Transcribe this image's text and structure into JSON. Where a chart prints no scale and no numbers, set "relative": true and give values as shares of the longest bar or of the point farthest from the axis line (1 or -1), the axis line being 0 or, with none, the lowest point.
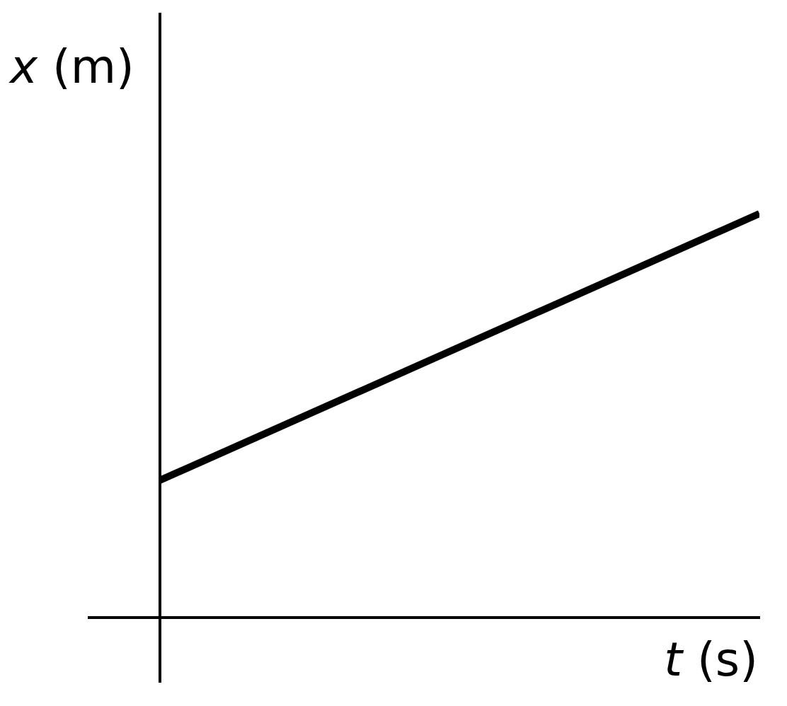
{
  "chart_data": {
    "type": "line",
    "relative": true,
    "xlabel": "t (s)",
    "ylabel": "x (m)",
    "categories": [
      null,
      null
    ],
    "series": [
      {
        "color": "#000000",
        "values": [
          0.34,
          1
        ]
      }
    ]
  }
}
